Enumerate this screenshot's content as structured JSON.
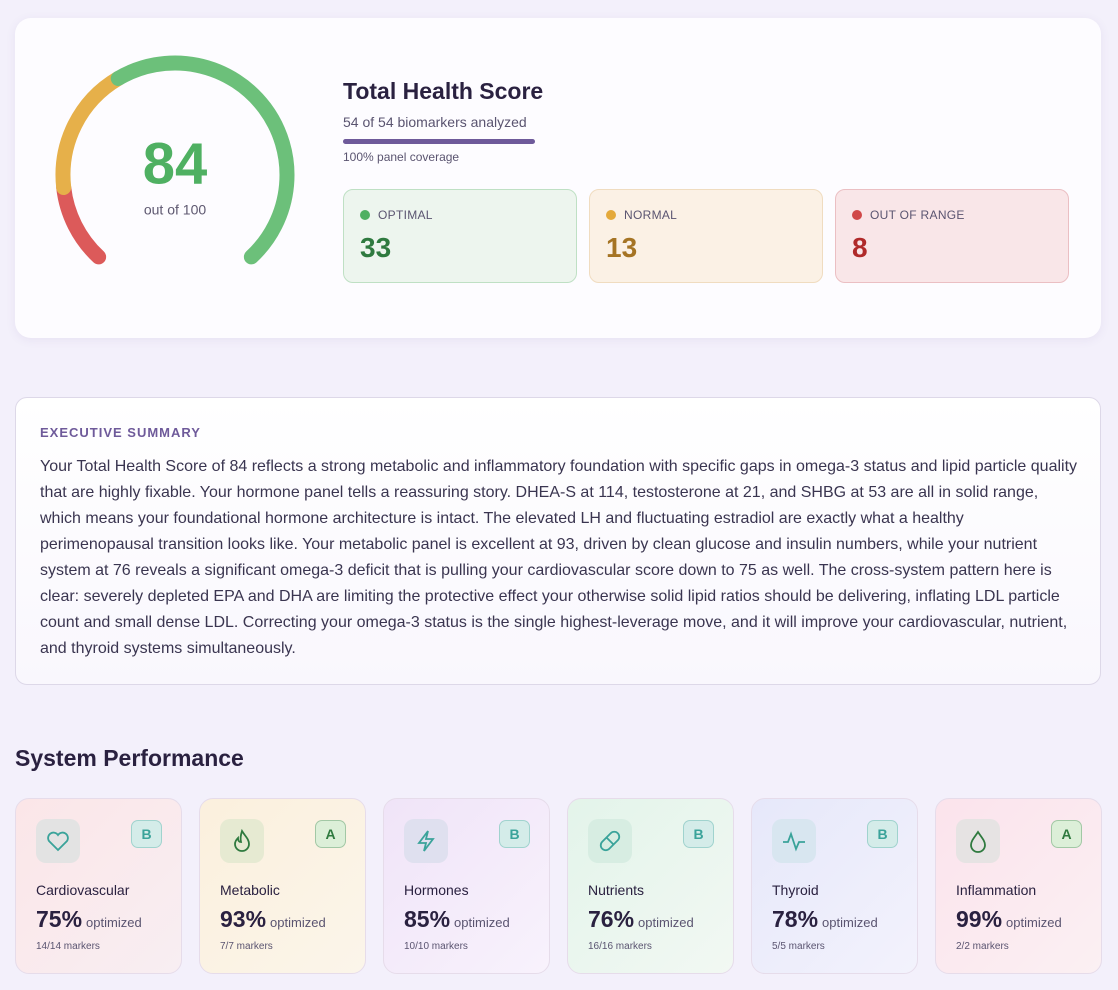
{
  "score": {
    "title": "Total Health Score",
    "value": 84,
    "out_of": "out of 100",
    "analyzed": "54 of 54 biomarkers analyzed",
    "coverage": {
      "value": 100,
      "label": "100% panel coverage"
    }
  },
  "counts": [
    {
      "label": "OPTIMAL",
      "value": 33
    },
    {
      "label": "NORMAL",
      "value": 13
    },
    {
      "label": "OUT OF RANGE",
      "value": 8
    }
  ],
  "summary": {
    "heading": "EXECUTIVE SUMMARY",
    "text": "Your Total Health Score of 84 reflects a strong metabolic and inflammatory foundation with specific gaps in omega-3 status and lipid particle quality that are highly fixable. Your hormone panel tells a reassuring story. DHEA-S at 114, testosterone at 21, and SHBG at 53 are all in solid range, which means your foundational hormone architecture is intact. The elevated LH and fluctuating estradiol are exactly what a healthy perimenopausal transition looks like. Your metabolic panel is excellent at 93, driven by clean glucose and insulin numbers, while your nutrient system at 76 reveals a significant omega-3 deficit that is pulling your cardiovascular score down to 75 as well. The cross-system pattern here is clear: severely depleted EPA and DHA are limiting the protective effect your otherwise solid lipid ratios should be delivering, inflating LDL particle count and small dense LDL. Correcting your omega-3 status is the single highest-leverage move, and it will improve your cardiovascular, nutrient, and thyroid systems simultaneously."
  },
  "systems": {
    "heading": "System Performance",
    "items": [
      {
        "name": "Cardiovascular",
        "grade": "B",
        "percent": "75%",
        "suffix": "optimized",
        "markers": "14/14 markers"
      },
      {
        "name": "Metabolic",
        "grade": "A",
        "percent": "93%",
        "suffix": "optimized",
        "markers": "7/7 markers"
      },
      {
        "name": "Hormones",
        "grade": "B",
        "percent": "85%",
        "suffix": "optimized",
        "markers": "10/10 markers"
      },
      {
        "name": "Nutrients",
        "grade": "B",
        "percent": "76%",
        "suffix": "optimized",
        "markers": "16/16 markers"
      },
      {
        "name": "Thyroid",
        "grade": "B",
        "percent": "78%",
        "suffix": "optimized",
        "markers": "5/5 markers"
      },
      {
        "name": "Inflammation",
        "grade": "A",
        "percent": "99%",
        "suffix": "optimized",
        "markers": "2/2 markers"
      }
    ]
  }
}
